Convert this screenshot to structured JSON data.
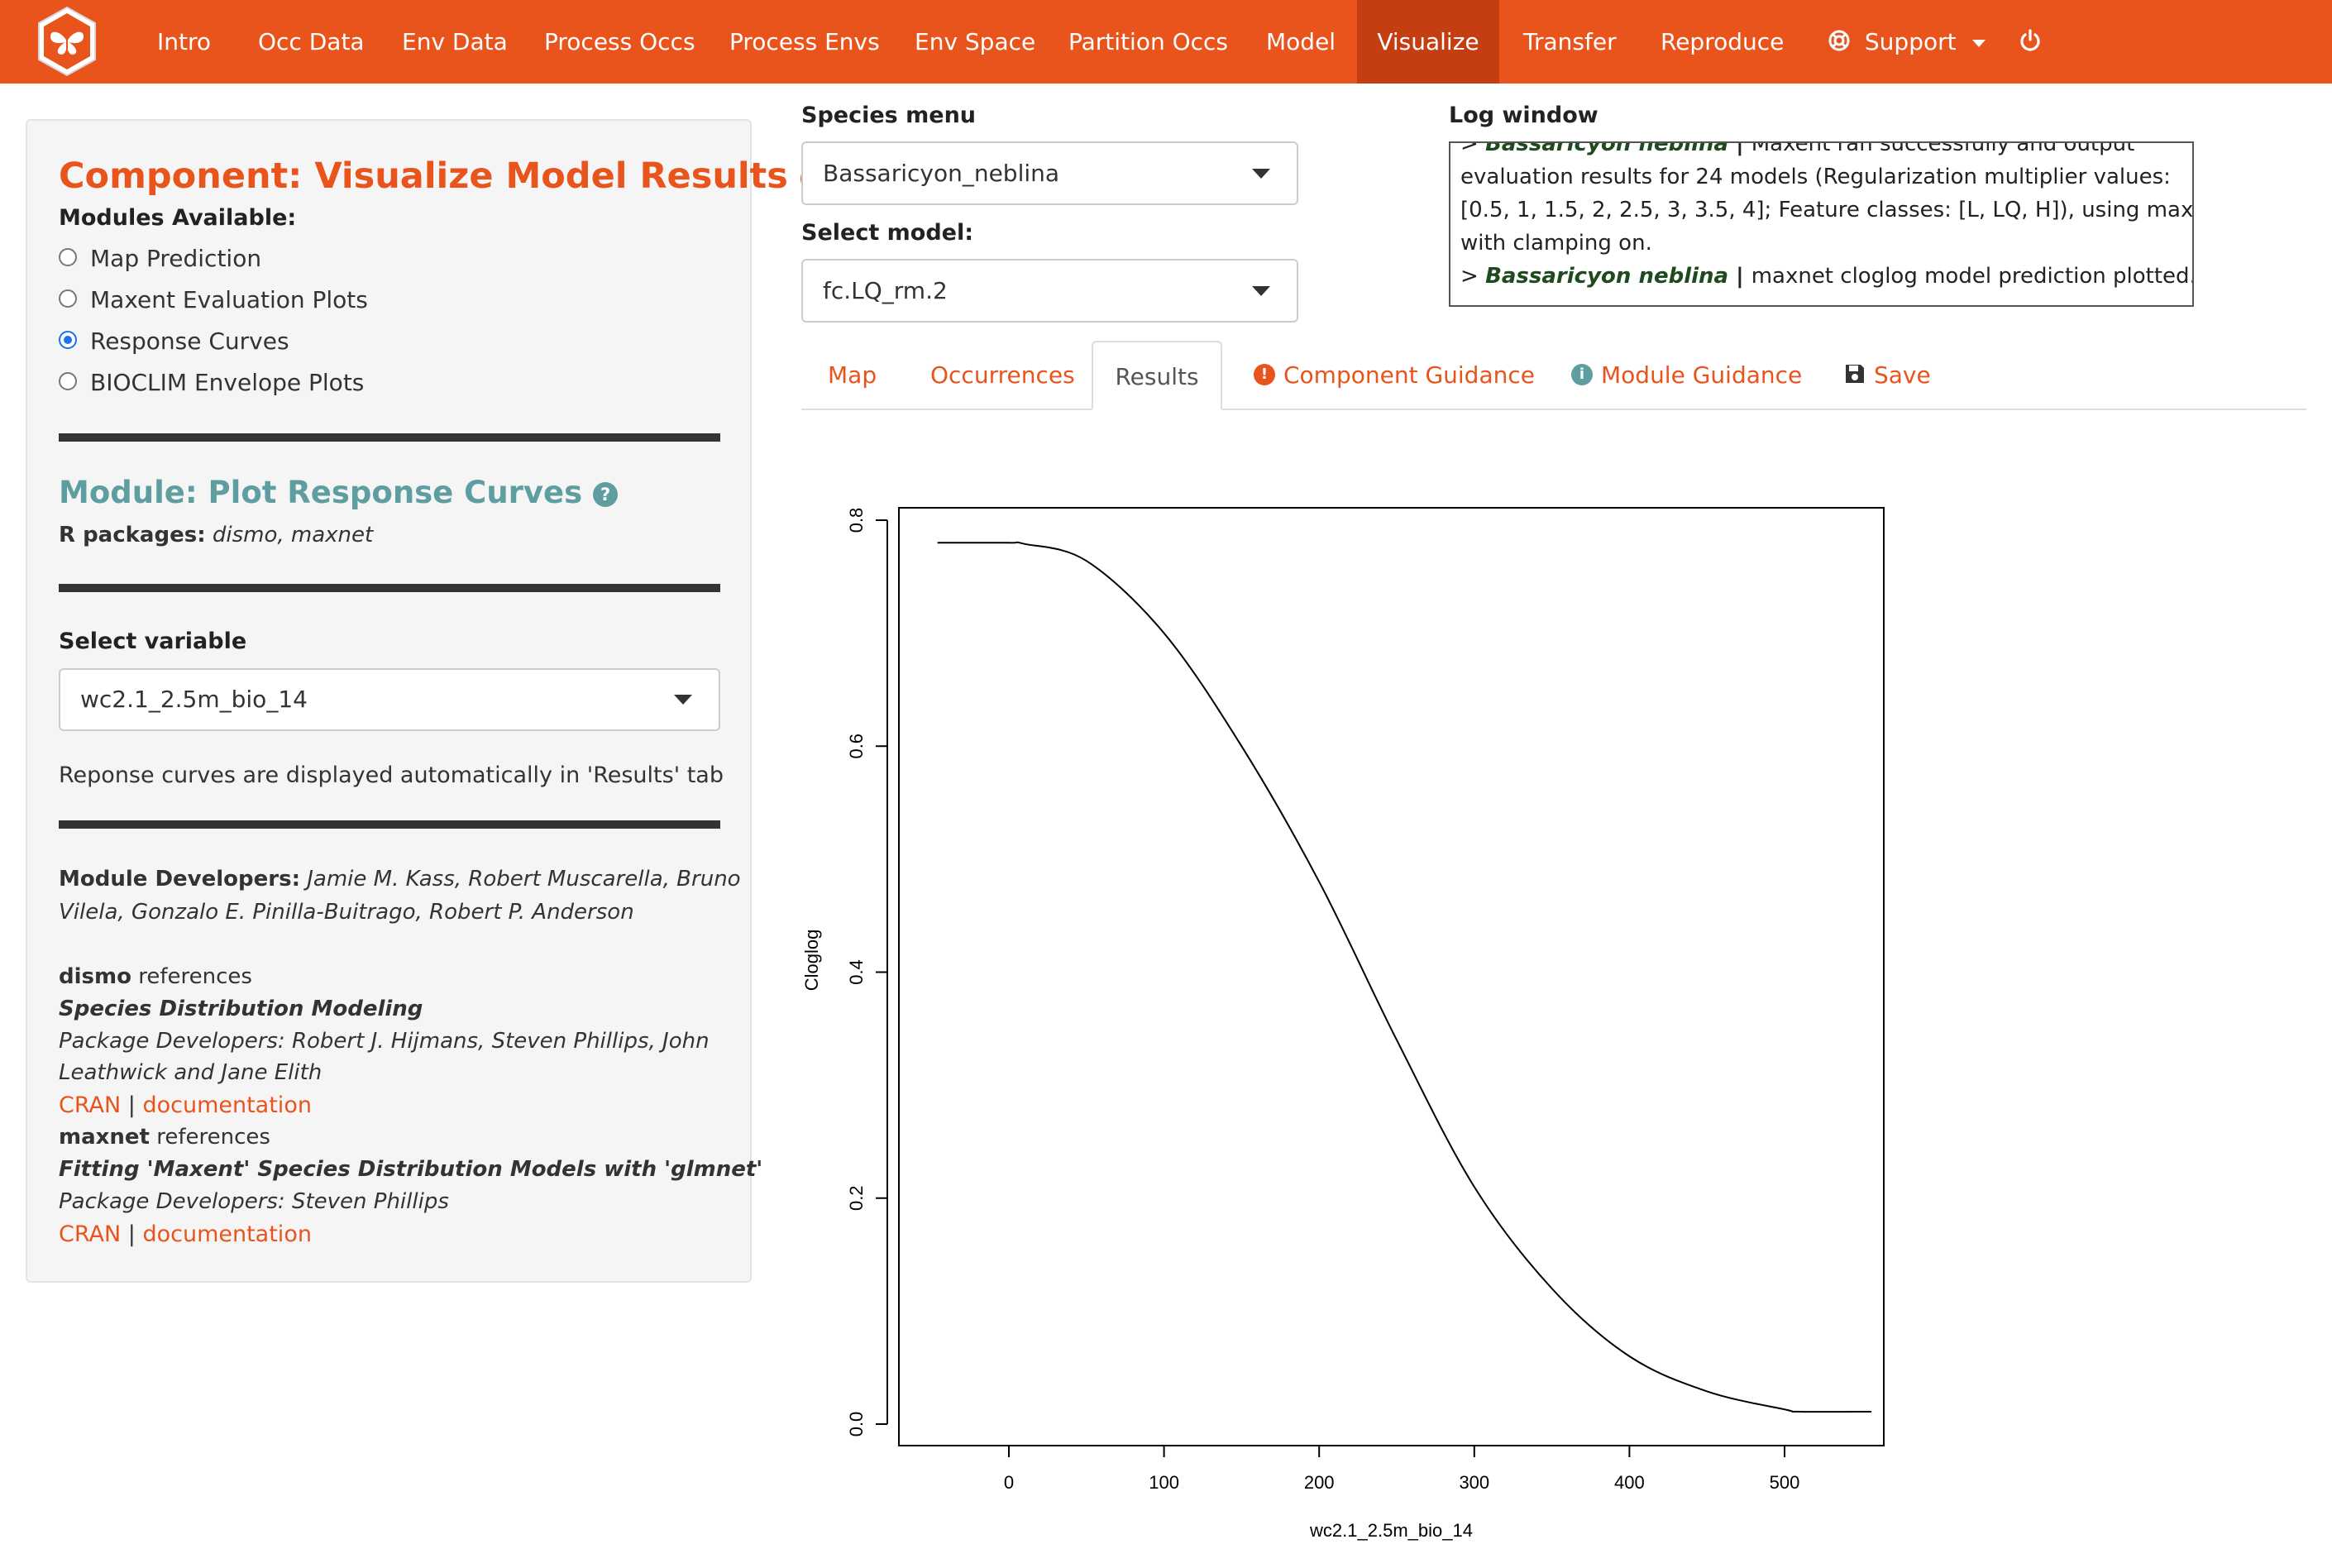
{
  "navbar": {
    "logo_icon": "butterfly-hexagon-logo",
    "items": [
      "Intro",
      "Occ Data",
      "Env Data",
      "Process Occs",
      "Process Envs",
      "Env Space",
      "Partition Occs",
      "Model",
      "Visualize",
      "Transfer",
      "Reproduce"
    ],
    "active": "Visualize",
    "support_label": "Support",
    "support_icon": "lifebuoy-icon",
    "power_icon": "power-icon",
    "colors": {
      "bar": "#e8541c",
      "active": "#c43e12"
    }
  },
  "left_panel": {
    "component_title": "Component: Visualize Model Results",
    "modules_label": "Modules Available:",
    "modules": [
      {
        "label": "Map Prediction",
        "checked": false
      },
      {
        "label": "Maxent Evaluation Plots",
        "checked": false
      },
      {
        "label": "Response Curves",
        "checked": true
      },
      {
        "label": "BIOCLIM Envelope Plots",
        "checked": false
      }
    ],
    "module_title": "Module: Plot Response Curves",
    "r_packages_label": "R packages:",
    "r_packages": "dismo, maxnet",
    "select_variable_label": "Select variable",
    "select_variable_value": "wc2.1_2.5m_bio_14",
    "note": "Reponse curves are displayed automatically in 'Results' tab",
    "developers_label": "Module Developers:",
    "developers_line1": "Jamie M. Kass, Robert Muscarella, Bruno",
    "developers_line2": "Vilela, Gonzalo E. Pinilla-Buitrago, Robert P. Anderson",
    "dismo": {
      "name": "dismo",
      "references": " references",
      "title": "Species Distribution Modeling",
      "devs_line1": "Package Developers: Robert J. Hijmans, Steven Phillips, John",
      "devs_line2": "Leathwick and Jane Elith",
      "cran": "CRAN",
      "sep": " | ",
      "docs": "documentation"
    },
    "maxnet": {
      "name": "maxnet",
      "references": " references",
      "title": "Fitting 'Maxent' Species Distribution Models with 'glmnet'",
      "devs": "Package Developers: Steven Phillips",
      "cran": "CRAN",
      "sep": " | ",
      "docs": "documentation"
    }
  },
  "species_menu": {
    "label": "Species menu",
    "value": "Bassaricyon_neblina"
  },
  "select_model": {
    "label": "Select model:",
    "value": "fc.LQ_rm.2"
  },
  "log_window": {
    "label": "Log window",
    "lines": [
      {
        "prefix": "> ",
        "species": "Bassaricyon neblina",
        "sep": " | ",
        "text": "Maxent ran successfully and output"
      },
      {
        "text": "evaluation results for 24 models (Regularization multiplier values:"
      },
      {
        "text": "[0.5, 1, 1.5, 2, 2.5, 3, 3.5, 4]; Feature classes: [L, LQ, H]), using maxnet"
      },
      {
        "text": "with clamping on."
      },
      {
        "prefix": "> ",
        "species": "Bassaricyon neblina",
        "sep": " | ",
        "text": "maxnet cloglog model prediction plotted."
      }
    ]
  },
  "tabs": {
    "map": "Map",
    "occurrences": "Occurrences",
    "results": "Results",
    "component_guidance": "Component Guidance",
    "module_guidance": "Module Guidance",
    "save": "Save",
    "active": "Results"
  },
  "chart_data": {
    "type": "line",
    "xlabel": "wc2.1_2.5m_bio_14",
    "ylabel": "Cloglog",
    "xlim": [
      -70,
      580
    ],
    "ylim": [
      -0.02,
      0.81
    ],
    "xticks": [
      0,
      100,
      200,
      300,
      400,
      500
    ],
    "yticks": [
      0.0,
      0.2,
      0.4,
      0.6,
      0.8
    ],
    "series": [
      {
        "x": [
          -46,
          0,
          10,
          50,
          100,
          150,
          200,
          250,
          300,
          350,
          400,
          450,
          500,
          510,
          556
        ],
        "y": [
          0.78,
          0.78,
          0.779,
          0.764,
          0.7,
          0.6,
          0.48,
          0.34,
          0.21,
          0.12,
          0.06,
          0.029,
          0.013,
          0.011,
          0.011
        ]
      }
    ],
    "grid": false
  }
}
